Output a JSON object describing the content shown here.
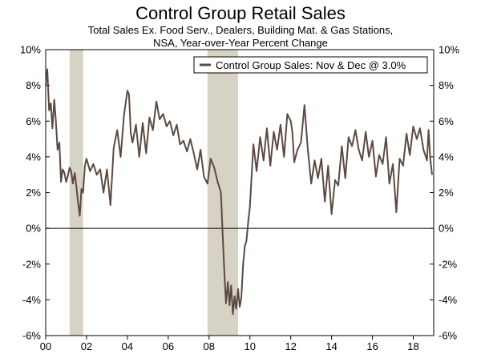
{
  "chart_data": {
    "type": "line",
    "title": "Control Group Retail Sales",
    "subtitle_lines": [
      "Total Sales Ex. Food Serv., Dealers, Building Mat. & Gas Stations,",
      "NSA, Year-over-Year Percent Change"
    ],
    "legend": "Control Group Sales: Nov & Dec @ 3.0%",
    "line_color": "#5b4a42",
    "recession_color": "#d6d2c4",
    "xlim": [
      2000.0,
      2019.0
    ],
    "ylim": [
      -6,
      10
    ],
    "y_ticks": [
      -6,
      -4,
      -2,
      0,
      2,
      4,
      6,
      8,
      10
    ],
    "y_tick_labels": [
      "-6%",
      "-4%",
      "-2%",
      "0%",
      "2%",
      "4%",
      "6%",
      "8%",
      "10%"
    ],
    "x_ticks": [
      2000,
      2002,
      2004,
      2006,
      2008,
      2010,
      2012,
      2014,
      2016,
      2018
    ],
    "x_tick_labels": [
      "00",
      "02",
      "04",
      "06",
      "08",
      "10",
      "12",
      "14",
      "16",
      "18"
    ],
    "recessions": [
      [
        2001.17,
        2001.83
      ],
      [
        2007.92,
        2009.42
      ]
    ],
    "series": [
      {
        "name": "Control Group Sales",
        "x": [
          2000.0,
          2000.08,
          2000.17,
          2000.25,
          2000.33,
          2000.42,
          2000.5,
          2000.58,
          2000.67,
          2000.75,
          2000.83,
          2000.92,
          2001.0,
          2001.08,
          2001.17,
          2001.25,
          2001.33,
          2001.42,
          2001.5,
          2001.58,
          2001.67,
          2001.75,
          2001.83,
          2001.92,
          2002.0,
          2002.17,
          2002.33,
          2002.5,
          2002.67,
          2002.83,
          2003.0,
          2003.17,
          2003.33,
          2003.5,
          2003.67,
          2003.83,
          2004.0,
          2004.08,
          2004.17,
          2004.25,
          2004.42,
          2004.58,
          2004.75,
          2004.92,
          2005.08,
          2005.25,
          2005.42,
          2005.58,
          2005.75,
          2005.92,
          2006.08,
          2006.25,
          2006.42,
          2006.58,
          2006.75,
          2006.92,
          2007.08,
          2007.25,
          2007.42,
          2007.58,
          2007.75,
          2007.92,
          2008.08,
          2008.25,
          2008.42,
          2008.58,
          2008.67,
          2008.75,
          2008.83,
          2008.92,
          2009.0,
          2009.08,
          2009.17,
          2009.25,
          2009.33,
          2009.42,
          2009.5,
          2009.58,
          2009.67,
          2009.75,
          2009.83,
          2009.92,
          2010.0,
          2010.17,
          2010.33,
          2010.5,
          2010.67,
          2010.83,
          2011.0,
          2011.17,
          2011.33,
          2011.5,
          2011.67,
          2011.83,
          2012.0,
          2012.08,
          2012.17,
          2012.33,
          2012.5,
          2012.67,
          2012.83,
          2013.0,
          2013.17,
          2013.33,
          2013.5,
          2013.67,
          2013.83,
          2014.0,
          2014.17,
          2014.33,
          2014.5,
          2014.67,
          2014.83,
          2015.0,
          2015.17,
          2015.33,
          2015.5,
          2015.67,
          2015.83,
          2016.0,
          2016.17,
          2016.33,
          2016.5,
          2016.67,
          2016.83,
          2017.0,
          2017.17,
          2017.33,
          2017.5,
          2017.67,
          2017.83,
          2018.0,
          2018.17,
          2018.33,
          2018.5,
          2018.67,
          2018.75,
          2018.83,
          2018.92
        ],
        "y": [
          8.0,
          8.9,
          6.6,
          7.0,
          5.6,
          7.2,
          6.0,
          4.4,
          4.8,
          2.6,
          3.3,
          3.1,
          2.6,
          2.9,
          3.4,
          3.2,
          2.5,
          3.1,
          2.4,
          1.5,
          0.7,
          2.2,
          2.0,
          3.5,
          3.9,
          3.2,
          3.6,
          3.0,
          3.3,
          2.0,
          3.3,
          1.3,
          4.5,
          5.5,
          4.0,
          6.3,
          7.7,
          7.5,
          5.3,
          4.8,
          5.8,
          4.0,
          5.9,
          4.2,
          6.2,
          5.5,
          7.1,
          6.1,
          6.4,
          5.7,
          6.0,
          5.2,
          5.8,
          4.7,
          4.9,
          4.3,
          5.0,
          4.2,
          3.3,
          4.4,
          2.9,
          2.5,
          3.9,
          3.4,
          2.6,
          2.0,
          -0.5,
          -2.5,
          -4.2,
          -3.0,
          -4.3,
          -3.2,
          -4.8,
          -3.8,
          -4.5,
          -3.4,
          -4.4,
          -3.9,
          -2.0,
          -1.0,
          -0.7,
          0.4,
          1.2,
          4.7,
          3.2,
          5.1,
          3.8,
          5.6,
          3.5,
          5.4,
          4.4,
          5.8,
          4.0,
          6.4,
          6.0,
          5.4,
          3.7,
          4.4,
          4.8,
          6.9,
          4.5,
          2.5,
          3.8,
          2.8,
          3.9,
          1.5,
          3.5,
          0.8,
          2.7,
          2.4,
          4.6,
          2.8,
          5.1,
          4.6,
          5.5,
          4.4,
          3.8,
          5.4,
          4.0,
          4.9,
          2.9,
          4.1,
          3.6,
          5.1,
          2.5,
          3.6,
          0.9,
          3.9,
          3.5,
          5.3,
          4.1,
          5.7,
          5.0,
          5.6,
          4.4,
          3.8,
          5.5,
          3.9,
          3.0
        ]
      }
    ]
  }
}
